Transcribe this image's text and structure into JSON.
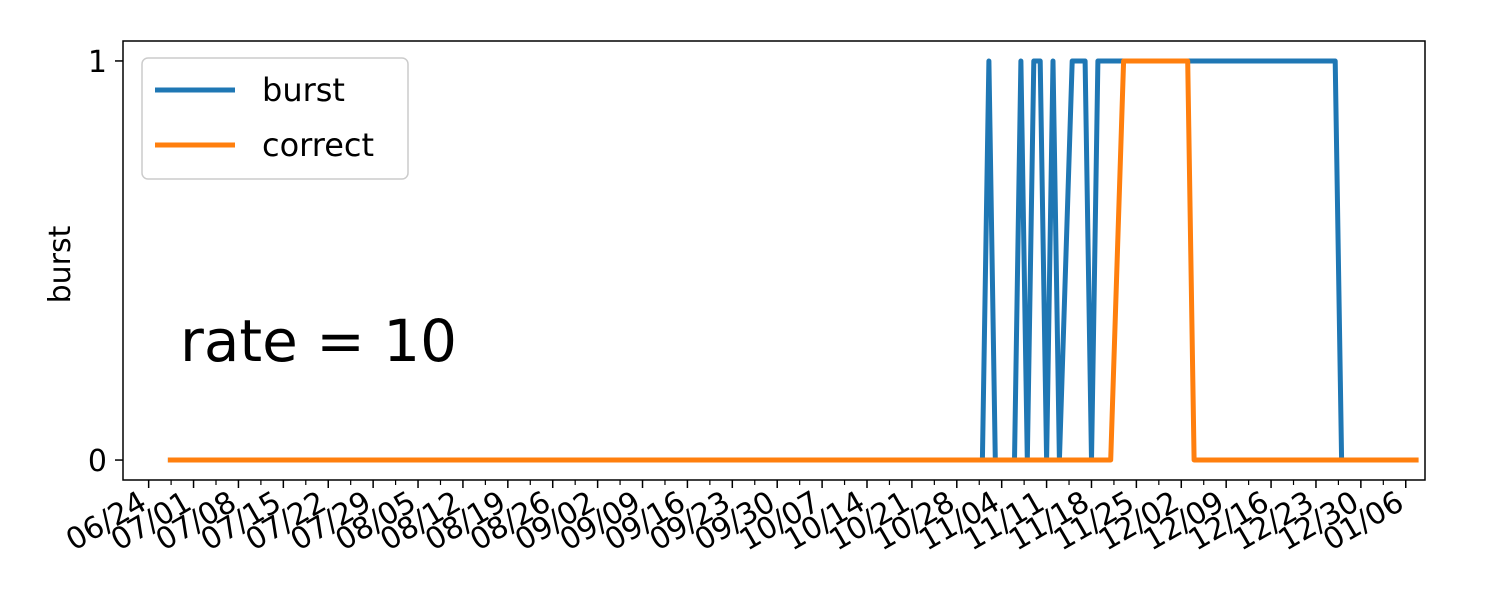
{
  "chart_data": {
    "type": "line",
    "title": "",
    "xlabel": "",
    "ylabel": "burst",
    "annotation": "rate = 10",
    "ylim": [
      -0.05,
      1.05
    ],
    "yticks": [
      0,
      1
    ],
    "ytick_labels": [
      "0",
      "1"
    ],
    "xlim": [
      "2020-06-20",
      "2021-01-09"
    ],
    "x_major_ticks": [
      "06/24",
      "07/01",
      "07/08",
      "07/15",
      "07/22",
      "07/29",
      "08/05",
      "08/12",
      "08/19",
      "08/26",
      "09/02",
      "09/09",
      "09/16",
      "09/23",
      "09/30",
      "10/07",
      "10/14",
      "10/21",
      "10/28",
      "11/04",
      "11/11",
      "11/18",
      "11/25",
      "12/02",
      "12/09",
      "12/16",
      "12/23",
      "12/30",
      "01/06"
    ],
    "x_major_tick_dates": [
      "2020-06-24",
      "2020-07-01",
      "2020-07-08",
      "2020-07-15",
      "2020-07-22",
      "2020-07-29",
      "2020-08-05",
      "2020-08-12",
      "2020-08-19",
      "2020-08-26",
      "2020-09-02",
      "2020-09-09",
      "2020-09-16",
      "2020-09-23",
      "2020-09-30",
      "2020-10-07",
      "2020-10-14",
      "2020-10-21",
      "2020-10-28",
      "2020-11-04",
      "2020-11-11",
      "2020-11-18",
      "2020-11-25",
      "2020-12-02",
      "2020-12-09",
      "2020-12-16",
      "2020-12-23",
      "2020-12-30",
      "2021-01-06"
    ],
    "legend": {
      "position": "top-left"
    },
    "grid": false,
    "series": [
      {
        "name": "burst",
        "color": "#1f77b4",
        "points": [
          [
            "2020-06-27",
            0
          ],
          [
            "2020-11-01",
            0
          ],
          [
            "2020-11-02",
            1
          ],
          [
            "2020-11-03",
            0
          ],
          [
            "2020-11-06",
            0
          ],
          [
            "2020-11-07",
            1
          ],
          [
            "2020-11-08",
            0
          ],
          [
            "2020-11-09",
            1
          ],
          [
            "2020-11-10",
            1
          ],
          [
            "2020-11-11",
            0
          ],
          [
            "2020-11-12",
            1
          ],
          [
            "2020-11-13",
            0
          ],
          [
            "2020-11-15",
            1
          ],
          [
            "2020-11-17",
            1
          ],
          [
            "2020-11-18",
            0
          ],
          [
            "2020-11-19",
            1
          ],
          [
            "2020-12-26",
            1
          ],
          [
            "2020-12-27",
            0
          ],
          [
            "2020-12-31",
            0
          ]
        ]
      },
      {
        "name": "correct",
        "color": "#ff7f0e",
        "points": [
          [
            "2020-06-27",
            0
          ],
          [
            "2020-11-21",
            0
          ],
          [
            "2020-11-23",
            1
          ],
          [
            "2020-12-03",
            1
          ],
          [
            "2020-12-04",
            0
          ],
          [
            "2021-01-08",
            0
          ]
        ]
      }
    ]
  }
}
